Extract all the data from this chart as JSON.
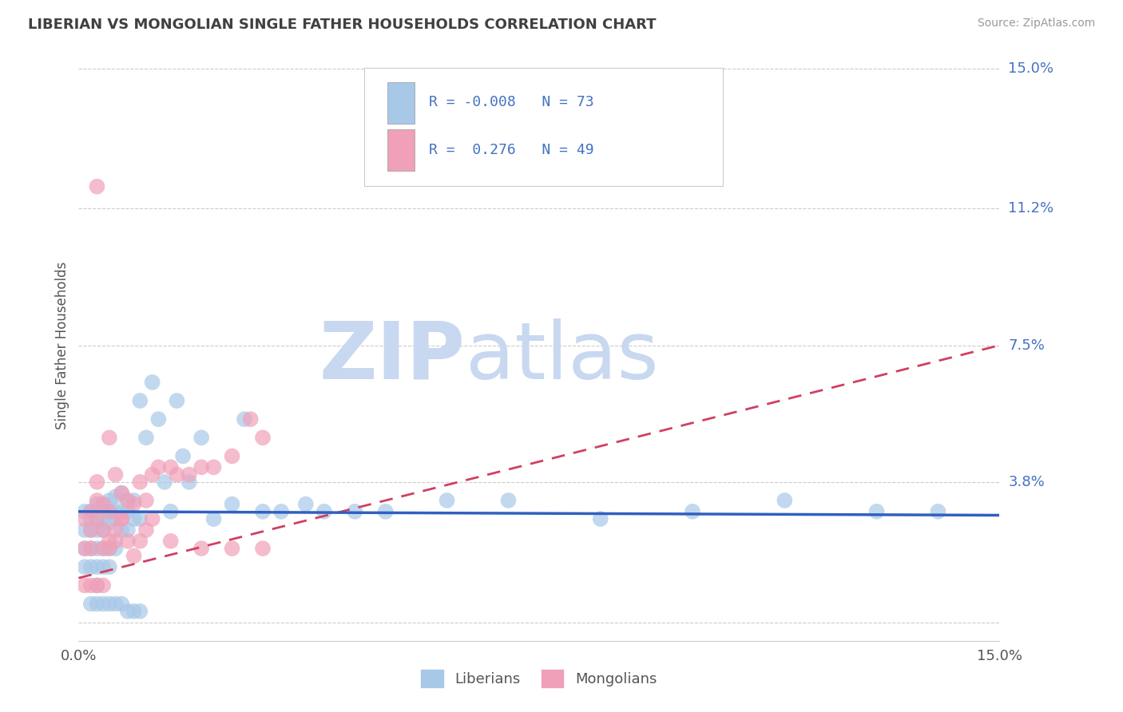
{
  "title": "LIBERIAN VS MONGOLIAN SINGLE FATHER HOUSEHOLDS CORRELATION CHART",
  "source": "Source: ZipAtlas.com",
  "ylabel": "Single Father Households",
  "xlim": [
    0.0,
    0.15
  ],
  "ylim": [
    -0.005,
    0.155
  ],
  "yticks": [
    0.0,
    0.038,
    0.075,
    0.112,
    0.15
  ],
  "ytick_labels": [
    "",
    "3.8%",
    "7.5%",
    "11.2%",
    "15.0%"
  ],
  "xticks": [
    0.0,
    0.15
  ],
  "xtick_labels": [
    "0.0%",
    "15.0%"
  ],
  "liberian_R": -0.008,
  "liberian_N": 73,
  "mongolian_R": 0.276,
  "mongolian_N": 49,
  "liberian_color": "#a8c8e8",
  "mongolian_color": "#f0a0b8",
  "liberian_line_color": "#3060c0",
  "mongolian_line_color": "#d04060",
  "title_color": "#404040",
  "axis_label_color": "#4472c4",
  "watermark_zip": "ZIP",
  "watermark_atlas": "atlas",
  "watermark_color": "#c8d8f0",
  "liberian_x": [
    0.001,
    0.001,
    0.001,
    0.001,
    0.002,
    0.002,
    0.002,
    0.002,
    0.002,
    0.003,
    0.003,
    0.003,
    0.003,
    0.003,
    0.003,
    0.004,
    0.004,
    0.004,
    0.004,
    0.004,
    0.005,
    0.005,
    0.005,
    0.005,
    0.005,
    0.006,
    0.006,
    0.006,
    0.006,
    0.007,
    0.007,
    0.007,
    0.008,
    0.008,
    0.008,
    0.009,
    0.009,
    0.01,
    0.01,
    0.011,
    0.012,
    0.013,
    0.014,
    0.015,
    0.016,
    0.017,
    0.018,
    0.02,
    0.022,
    0.025,
    0.027,
    0.03,
    0.033,
    0.037,
    0.04,
    0.045,
    0.05,
    0.06,
    0.07,
    0.085,
    0.1,
    0.115,
    0.13,
    0.14,
    0.002,
    0.003,
    0.004,
    0.005,
    0.006,
    0.007,
    0.008,
    0.009,
    0.01
  ],
  "liberian_y": [
    0.03,
    0.025,
    0.02,
    0.015,
    0.03,
    0.028,
    0.025,
    0.02,
    0.015,
    0.032,
    0.028,
    0.025,
    0.02,
    0.015,
    0.01,
    0.032,
    0.028,
    0.025,
    0.02,
    0.015,
    0.033,
    0.03,
    0.027,
    0.02,
    0.015,
    0.034,
    0.03,
    0.028,
    0.02,
    0.035,
    0.03,
    0.025,
    0.033,
    0.03,
    0.025,
    0.033,
    0.028,
    0.06,
    0.028,
    0.05,
    0.065,
    0.055,
    0.038,
    0.03,
    0.06,
    0.045,
    0.038,
    0.05,
    0.028,
    0.032,
    0.055,
    0.03,
    0.03,
    0.032,
    0.03,
    0.03,
    0.03,
    0.033,
    0.033,
    0.028,
    0.03,
    0.033,
    0.03,
    0.03,
    0.005,
    0.005,
    0.005,
    0.005,
    0.005,
    0.005,
    0.003,
    0.003,
    0.003
  ],
  "mongolian_x": [
    0.001,
    0.001,
    0.001,
    0.002,
    0.002,
    0.002,
    0.003,
    0.003,
    0.003,
    0.004,
    0.004,
    0.004,
    0.005,
    0.005,
    0.005,
    0.006,
    0.006,
    0.007,
    0.007,
    0.008,
    0.009,
    0.01,
    0.011,
    0.012,
    0.013,
    0.015,
    0.016,
    0.018,
    0.02,
    0.022,
    0.025,
    0.028,
    0.03,
    0.002,
    0.003,
    0.004,
    0.005,
    0.006,
    0.007,
    0.008,
    0.009,
    0.01,
    0.011,
    0.012,
    0.015,
    0.02,
    0.025,
    0.03,
    0.003
  ],
  "mongolian_y": [
    0.028,
    0.02,
    0.01,
    0.03,
    0.025,
    0.01,
    0.033,
    0.028,
    0.01,
    0.032,
    0.025,
    0.01,
    0.05,
    0.03,
    0.02,
    0.04,
    0.022,
    0.035,
    0.028,
    0.033,
    0.032,
    0.038,
    0.033,
    0.04,
    0.042,
    0.042,
    0.04,
    0.04,
    0.042,
    0.042,
    0.045,
    0.055,
    0.05,
    0.02,
    0.038,
    0.02,
    0.022,
    0.025,
    0.028,
    0.022,
    0.018,
    0.022,
    0.025,
    0.028,
    0.022,
    0.02,
    0.02,
    0.02,
    0.118
  ],
  "lib_trend_x": [
    0.0,
    0.15
  ],
  "lib_trend_y": [
    0.03,
    0.029
  ],
  "mon_trend_x": [
    0.0,
    0.15
  ],
  "mon_trend_y": [
    0.012,
    0.075
  ]
}
